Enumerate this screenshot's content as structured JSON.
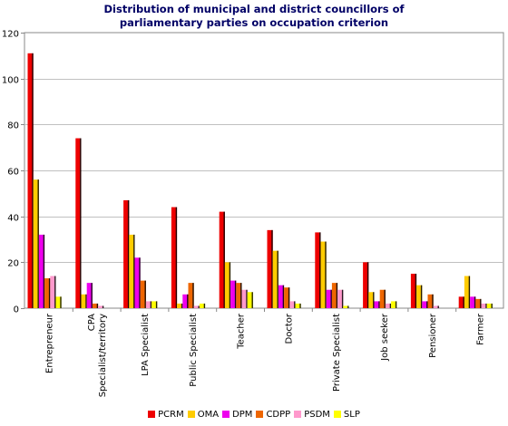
{
  "chart_data": {
    "type": "bar",
    "title": "Distribution of municipal and district councillors of parliamentary parties on occupation criterion",
    "title_lines": [
      "Distribution of municipal and district councillors of",
      "parliamentary parties on occupation criterion"
    ],
    "categories": [
      "Entrepreneur",
      "CPA Specialist/territory",
      "LPA Specialist",
      "Public Specialist",
      "Teacher",
      "Doctor",
      "Private Specialist",
      "Job seeker",
      "Pensioner",
      "Farmer"
    ],
    "category_label_lines": [
      [
        "Entrepreneur"
      ],
      [
        "CPA",
        "Specialist/territory"
      ],
      [
        "LPA Specialist"
      ],
      [
        "Public Specialist"
      ],
      [
        "Teacher"
      ],
      [
        "Doctor"
      ],
      [
        "Private Specialist"
      ],
      [
        "Job seeker"
      ],
      [
        "Pensioner"
      ],
      [
        "Farmer"
      ]
    ],
    "series": [
      {
        "name": "PCRM",
        "color": "#ee0000",
        "values": [
          111,
          74,
          47,
          44,
          42,
          34,
          33,
          20,
          15,
          5
        ]
      },
      {
        "name": "OMA",
        "color": "#ffcc00",
        "values": [
          56,
          6,
          32,
          2,
          20,
          25,
          29,
          7,
          10,
          14
        ]
      },
      {
        "name": "DPM",
        "color": "#ee00ee",
        "values": [
          32,
          11,
          22,
          6,
          12,
          10,
          8,
          3,
          3,
          5
        ]
      },
      {
        "name": "CDPP",
        "color": "#ee6600",
        "values": [
          13,
          2,
          12,
          11,
          11,
          9,
          11,
          8,
          6,
          4
        ]
      },
      {
        "name": "PSDM",
        "color": "#ff99cc",
        "values": [
          14,
          1,
          3,
          1,
          8,
          3,
          8,
          2,
          1,
          2
        ]
      },
      {
        "name": "SLP",
        "color": "#ffff00",
        "values": [
          5,
          0,
          3,
          2,
          7,
          2,
          1,
          3,
          0,
          2
        ]
      }
    ],
    "ylim": [
      0,
      120
    ],
    "yticks": [
      "0",
      "20",
      "40",
      "60",
      "80",
      "100",
      "120"
    ],
    "xlabel": "",
    "ylabel": "",
    "grid": true,
    "legend_position": "bottom"
  }
}
